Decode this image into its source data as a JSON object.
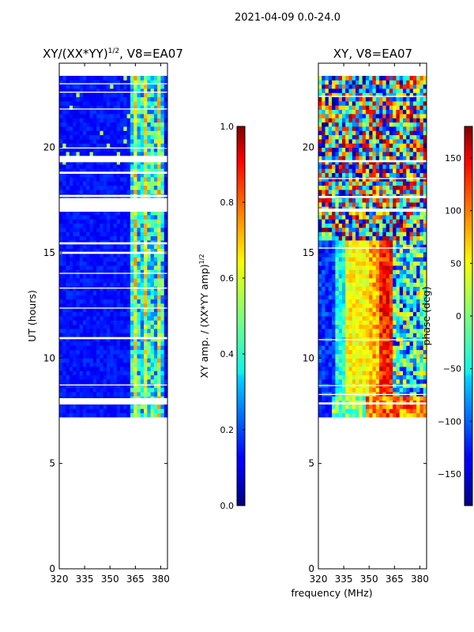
{
  "chart_data": [
    {
      "type": "heatmap",
      "suptitle": "2021-04-09 0.0-24.0",
      "title_main": "XY/(XX*YY)",
      "title_sup": "1/2",
      "title_tail": ", V8=EA07",
      "xlabel": "",
      "ylabel": "UT (hours)",
      "xlim": [
        320,
        384
      ],
      "ylim": [
        0,
        24
      ],
      "xticks": [
        320,
        335,
        350,
        365,
        380
      ],
      "yticks": [
        0,
        5,
        10,
        15,
        20
      ],
      "data_hours": [
        7.2,
        23.4
      ],
      "gap_hours": [
        [
          7.8,
          8.1
        ],
        [
          10.9,
          11.0
        ],
        [
          16.95,
          17.6
        ],
        [
          17.65,
          17.75
        ],
        [
          18.75,
          18.85
        ],
        [
          19.3,
          19.6
        ],
        [
          19.95,
          20.0
        ],
        [
          15.4,
          15.5
        ],
        [
          14.95,
          15.05
        ],
        [
          8.7,
          8.75
        ],
        [
          12.35,
          12.4
        ],
        [
          13.3,
          13.35
        ],
        [
          14.0,
          14.05
        ],
        [
          21.8,
          21.85
        ],
        [
          22.6,
          22.65
        ],
        [
          23.0,
          23.05
        ]
      ],
      "colorbar": {
        "label_main": "XY amp. / (XX*YY amp)",
        "label_sup": "1/2",
        "range": [
          0.0,
          1.0
        ],
        "ticks": [
          "0.0",
          "0.2",
          "0.4",
          "0.6",
          "0.8",
          "1.0"
        ],
        "tick_values": [
          0.0,
          0.2,
          0.4,
          0.6,
          0.8,
          1.0
        ],
        "colormap": "jet"
      }
    },
    {
      "type": "heatmap",
      "title": "XY, V8=EA07",
      "xlabel": "frequency (MHz)",
      "ylabel": "",
      "xlim": [
        320,
        384
      ],
      "ylim": [
        0,
        24
      ],
      "xticks": [
        320,
        335,
        350,
        365,
        380
      ],
      "yticks": [
        0,
        5,
        10,
        15,
        20
      ],
      "data_hours": [
        7.2,
        23.4
      ],
      "gap_hours": [
        [
          7.8,
          7.9
        ],
        [
          8.25,
          8.3
        ],
        [
          10.85,
          10.9
        ],
        [
          16.95,
          17.1
        ],
        [
          17.6,
          17.7
        ],
        [
          19.3,
          19.4
        ],
        [
          15.2,
          15.25
        ],
        [
          8.7,
          8.72
        ],
        [
          18.5,
          18.55
        ],
        [
          22.4,
          22.45
        ]
      ],
      "colorbar": {
        "label": "phase (deg)",
        "range": [
          -180,
          180
        ],
        "ticks": [
          "−150",
          "−100",
          "−50",
          "0",
          "50",
          "100",
          "150"
        ],
        "tick_values": [
          -150,
          -100,
          -50,
          0,
          50,
          100,
          150
        ],
        "colormap": "jet"
      }
    }
  ]
}
